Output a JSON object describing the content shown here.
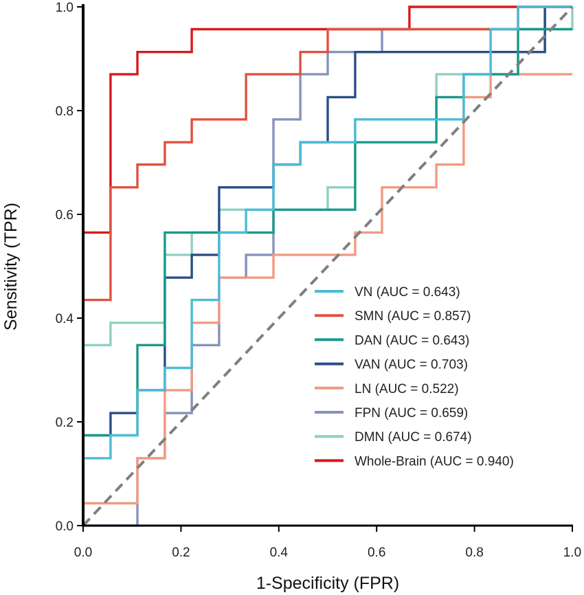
{
  "chart_data": {
    "type": "line",
    "subtype": "roc",
    "xlabel": "1-Specificity (FPR)",
    "ylabel": "Sensitivity (TPR)",
    "xlim": [
      0,
      1
    ],
    "ylim": [
      0,
      1
    ],
    "xticks": [
      "0.0",
      "0.2",
      "0.4",
      "0.6",
      "0.8",
      "1.0"
    ],
    "yticks": [
      "0.0",
      "0.2",
      "0.4",
      "0.6",
      "0.8",
      "1.0"
    ],
    "grid": false,
    "legend_position": "bottom-right",
    "reference_line": {
      "name": "chance",
      "style": "dashed",
      "color": "#7f7f7f",
      "points": [
        [
          0,
          0
        ],
        [
          1,
          1
        ]
      ]
    },
    "series": [
      {
        "name": "VN",
        "legend": "VN (AUC = 0.643)",
        "auc": 0.643,
        "color": "#4bbcd6",
        "points": [
          [
            0,
            0
          ],
          [
            0,
            0.13
          ],
          [
            0.056,
            0.13
          ],
          [
            0.056,
            0.174
          ],
          [
            0.111,
            0.174
          ],
          [
            0.111,
            0.261
          ],
          [
            0.167,
            0.261
          ],
          [
            0.167,
            0.304
          ],
          [
            0.222,
            0.304
          ],
          [
            0.222,
            0.435
          ],
          [
            0.278,
            0.435
          ],
          [
            0.278,
            0.565
          ],
          [
            0.333,
            0.565
          ],
          [
            0.333,
            0.609
          ],
          [
            0.389,
            0.609
          ],
          [
            0.389,
            0.696
          ],
          [
            0.444,
            0.696
          ],
          [
            0.444,
            0.739
          ],
          [
            0.556,
            0.739
          ],
          [
            0.556,
            0.783
          ],
          [
            0.778,
            0.783
          ],
          [
            0.778,
            0.87
          ],
          [
            0.833,
            0.87
          ],
          [
            0.833,
            0.957
          ],
          [
            0.889,
            0.957
          ],
          [
            0.889,
            1.0
          ],
          [
            1.0,
            1.0
          ]
        ]
      },
      {
        "name": "SMN",
        "legend": "SMN (AUC = 0.857)",
        "auc": 0.857,
        "color": "#e0513f",
        "points": [
          [
            0,
            0
          ],
          [
            0,
            0.435
          ],
          [
            0.056,
            0.435
          ],
          [
            0.056,
            0.652
          ],
          [
            0.111,
            0.652
          ],
          [
            0.111,
            0.696
          ],
          [
            0.167,
            0.696
          ],
          [
            0.167,
            0.739
          ],
          [
            0.222,
            0.739
          ],
          [
            0.222,
            0.783
          ],
          [
            0.333,
            0.783
          ],
          [
            0.333,
            0.87
          ],
          [
            0.444,
            0.87
          ],
          [
            0.444,
            0.913
          ],
          [
            0.5,
            0.913
          ],
          [
            0.5,
            0.957
          ],
          [
            0.889,
            0.957
          ],
          [
            0.889,
            1.0
          ],
          [
            1.0,
            1.0
          ]
        ]
      },
      {
        "name": "DAN",
        "legend": "DAN (AUC = 0.643)",
        "auc": 0.643,
        "color": "#18998a",
        "points": [
          [
            0,
            0
          ],
          [
            0,
            0.174
          ],
          [
            0.111,
            0.174
          ],
          [
            0.111,
            0.348
          ],
          [
            0.167,
            0.348
          ],
          [
            0.167,
            0.565
          ],
          [
            0.389,
            0.565
          ],
          [
            0.389,
            0.609
          ],
          [
            0.556,
            0.609
          ],
          [
            0.556,
            0.739
          ],
          [
            0.722,
            0.739
          ],
          [
            0.722,
            0.826
          ],
          [
            0.778,
            0.826
          ],
          [
            0.778,
            0.87
          ],
          [
            0.889,
            0.87
          ],
          [
            0.889,
            0.957
          ],
          [
            1.0,
            0.957
          ]
        ]
      },
      {
        "name": "VAN",
        "legend": "VAN (AUC = 0.703)",
        "auc": 0.703,
        "color": "#2c4d87",
        "points": [
          [
            0,
            0
          ],
          [
            0,
            0.174
          ],
          [
            0.056,
            0.174
          ],
          [
            0.056,
            0.217
          ],
          [
            0.111,
            0.217
          ],
          [
            0.111,
            0.261
          ],
          [
            0.167,
            0.261
          ],
          [
            0.167,
            0.478
          ],
          [
            0.222,
            0.478
          ],
          [
            0.222,
            0.522
          ],
          [
            0.278,
            0.522
          ],
          [
            0.278,
            0.652
          ],
          [
            0.389,
            0.652
          ],
          [
            0.389,
            0.696
          ],
          [
            0.444,
            0.696
          ],
          [
            0.444,
            0.739
          ],
          [
            0.5,
            0.739
          ],
          [
            0.5,
            0.826
          ],
          [
            0.556,
            0.826
          ],
          [
            0.556,
            0.913
          ],
          [
            0.778,
            0.913
          ],
          [
            0.778,
            0.913
          ],
          [
            0.944,
            0.913
          ],
          [
            0.944,
            1.0
          ],
          [
            1.0,
            1.0
          ]
        ]
      },
      {
        "name": "LN",
        "legend": "LN (AUC = 0.522)",
        "auc": 0.522,
        "color": "#f29a80",
        "points": [
          [
            0,
            0
          ],
          [
            0,
            0.043
          ],
          [
            0.111,
            0.043
          ],
          [
            0.111,
            0.13
          ],
          [
            0.167,
            0.13
          ],
          [
            0.167,
            0.261
          ],
          [
            0.222,
            0.261
          ],
          [
            0.222,
            0.391
          ],
          [
            0.278,
            0.391
          ],
          [
            0.278,
            0.478
          ],
          [
            0.333,
            0.478
          ],
          [
            0.333,
            0.478
          ],
          [
            0.389,
            0.478
          ],
          [
            0.389,
            0.522
          ],
          [
            0.556,
            0.522
          ],
          [
            0.556,
            0.565
          ],
          [
            0.611,
            0.565
          ],
          [
            0.611,
            0.652
          ],
          [
            0.722,
            0.652
          ],
          [
            0.722,
            0.696
          ],
          [
            0.778,
            0.696
          ],
          [
            0.778,
            0.826
          ],
          [
            0.833,
            0.826
          ],
          [
            0.833,
            0.87
          ],
          [
            0.944,
            0.87
          ],
          [
            0.944,
            0.87
          ],
          [
            1.0,
            0.87
          ]
        ]
      },
      {
        "name": "FPN",
        "legend": "FPN (AUC = 0.659)",
        "auc": 0.659,
        "color": "#8593bb",
        "points": [
          [
            0,
            0
          ],
          [
            0.111,
            0
          ],
          [
            0.111,
            0.13
          ],
          [
            0.167,
            0.13
          ],
          [
            0.167,
            0.217
          ],
          [
            0.222,
            0.217
          ],
          [
            0.222,
            0.348
          ],
          [
            0.278,
            0.348
          ],
          [
            0.278,
            0.478
          ],
          [
            0.333,
            0.478
          ],
          [
            0.333,
            0.522
          ],
          [
            0.389,
            0.522
          ],
          [
            0.389,
            0.783
          ],
          [
            0.444,
            0.783
          ],
          [
            0.444,
            0.87
          ],
          [
            0.5,
            0.87
          ],
          [
            0.5,
            0.913
          ],
          [
            0.611,
            0.913
          ],
          [
            0.611,
            0.957
          ],
          [
            0.944,
            0.957
          ],
          [
            0.944,
            1.0
          ],
          [
            1.0,
            1.0
          ]
        ]
      },
      {
        "name": "DMN",
        "legend": "DMN (AUC = 0.674)",
        "auc": 0.674,
        "color": "#8fd0c3",
        "points": [
          [
            0,
            0
          ],
          [
            0,
            0.348
          ],
          [
            0.056,
            0.348
          ],
          [
            0.056,
            0.391
          ],
          [
            0.167,
            0.391
          ],
          [
            0.167,
            0.522
          ],
          [
            0.222,
            0.522
          ],
          [
            0.222,
            0.565
          ],
          [
            0.278,
            0.565
          ],
          [
            0.278,
            0.609
          ],
          [
            0.5,
            0.609
          ],
          [
            0.5,
            0.652
          ],
          [
            0.556,
            0.652
          ],
          [
            0.556,
            0.783
          ],
          [
            0.722,
            0.783
          ],
          [
            0.722,
            0.87
          ],
          [
            0.889,
            0.87
          ],
          [
            0.889,
            0.913
          ],
          [
            0.944,
            0.913
          ],
          [
            0.944,
            0.957
          ],
          [
            1.0,
            0.957
          ],
          [
            1.0,
            1.0
          ]
        ]
      },
      {
        "name": "Whole-Brain",
        "legend": "Whole-Brain (AUC = 0.940)",
        "auc": 0.94,
        "color": "#d7191c",
        "points": [
          [
            0,
            0
          ],
          [
            0,
            0.565
          ],
          [
            0.056,
            0.565
          ],
          [
            0.056,
            0.87
          ],
          [
            0.111,
            0.87
          ],
          [
            0.111,
            0.913
          ],
          [
            0.222,
            0.913
          ],
          [
            0.222,
            0.957
          ],
          [
            0.667,
            0.957
          ],
          [
            0.667,
            1.0
          ],
          [
            1.0,
            1.0
          ]
        ]
      }
    ]
  }
}
